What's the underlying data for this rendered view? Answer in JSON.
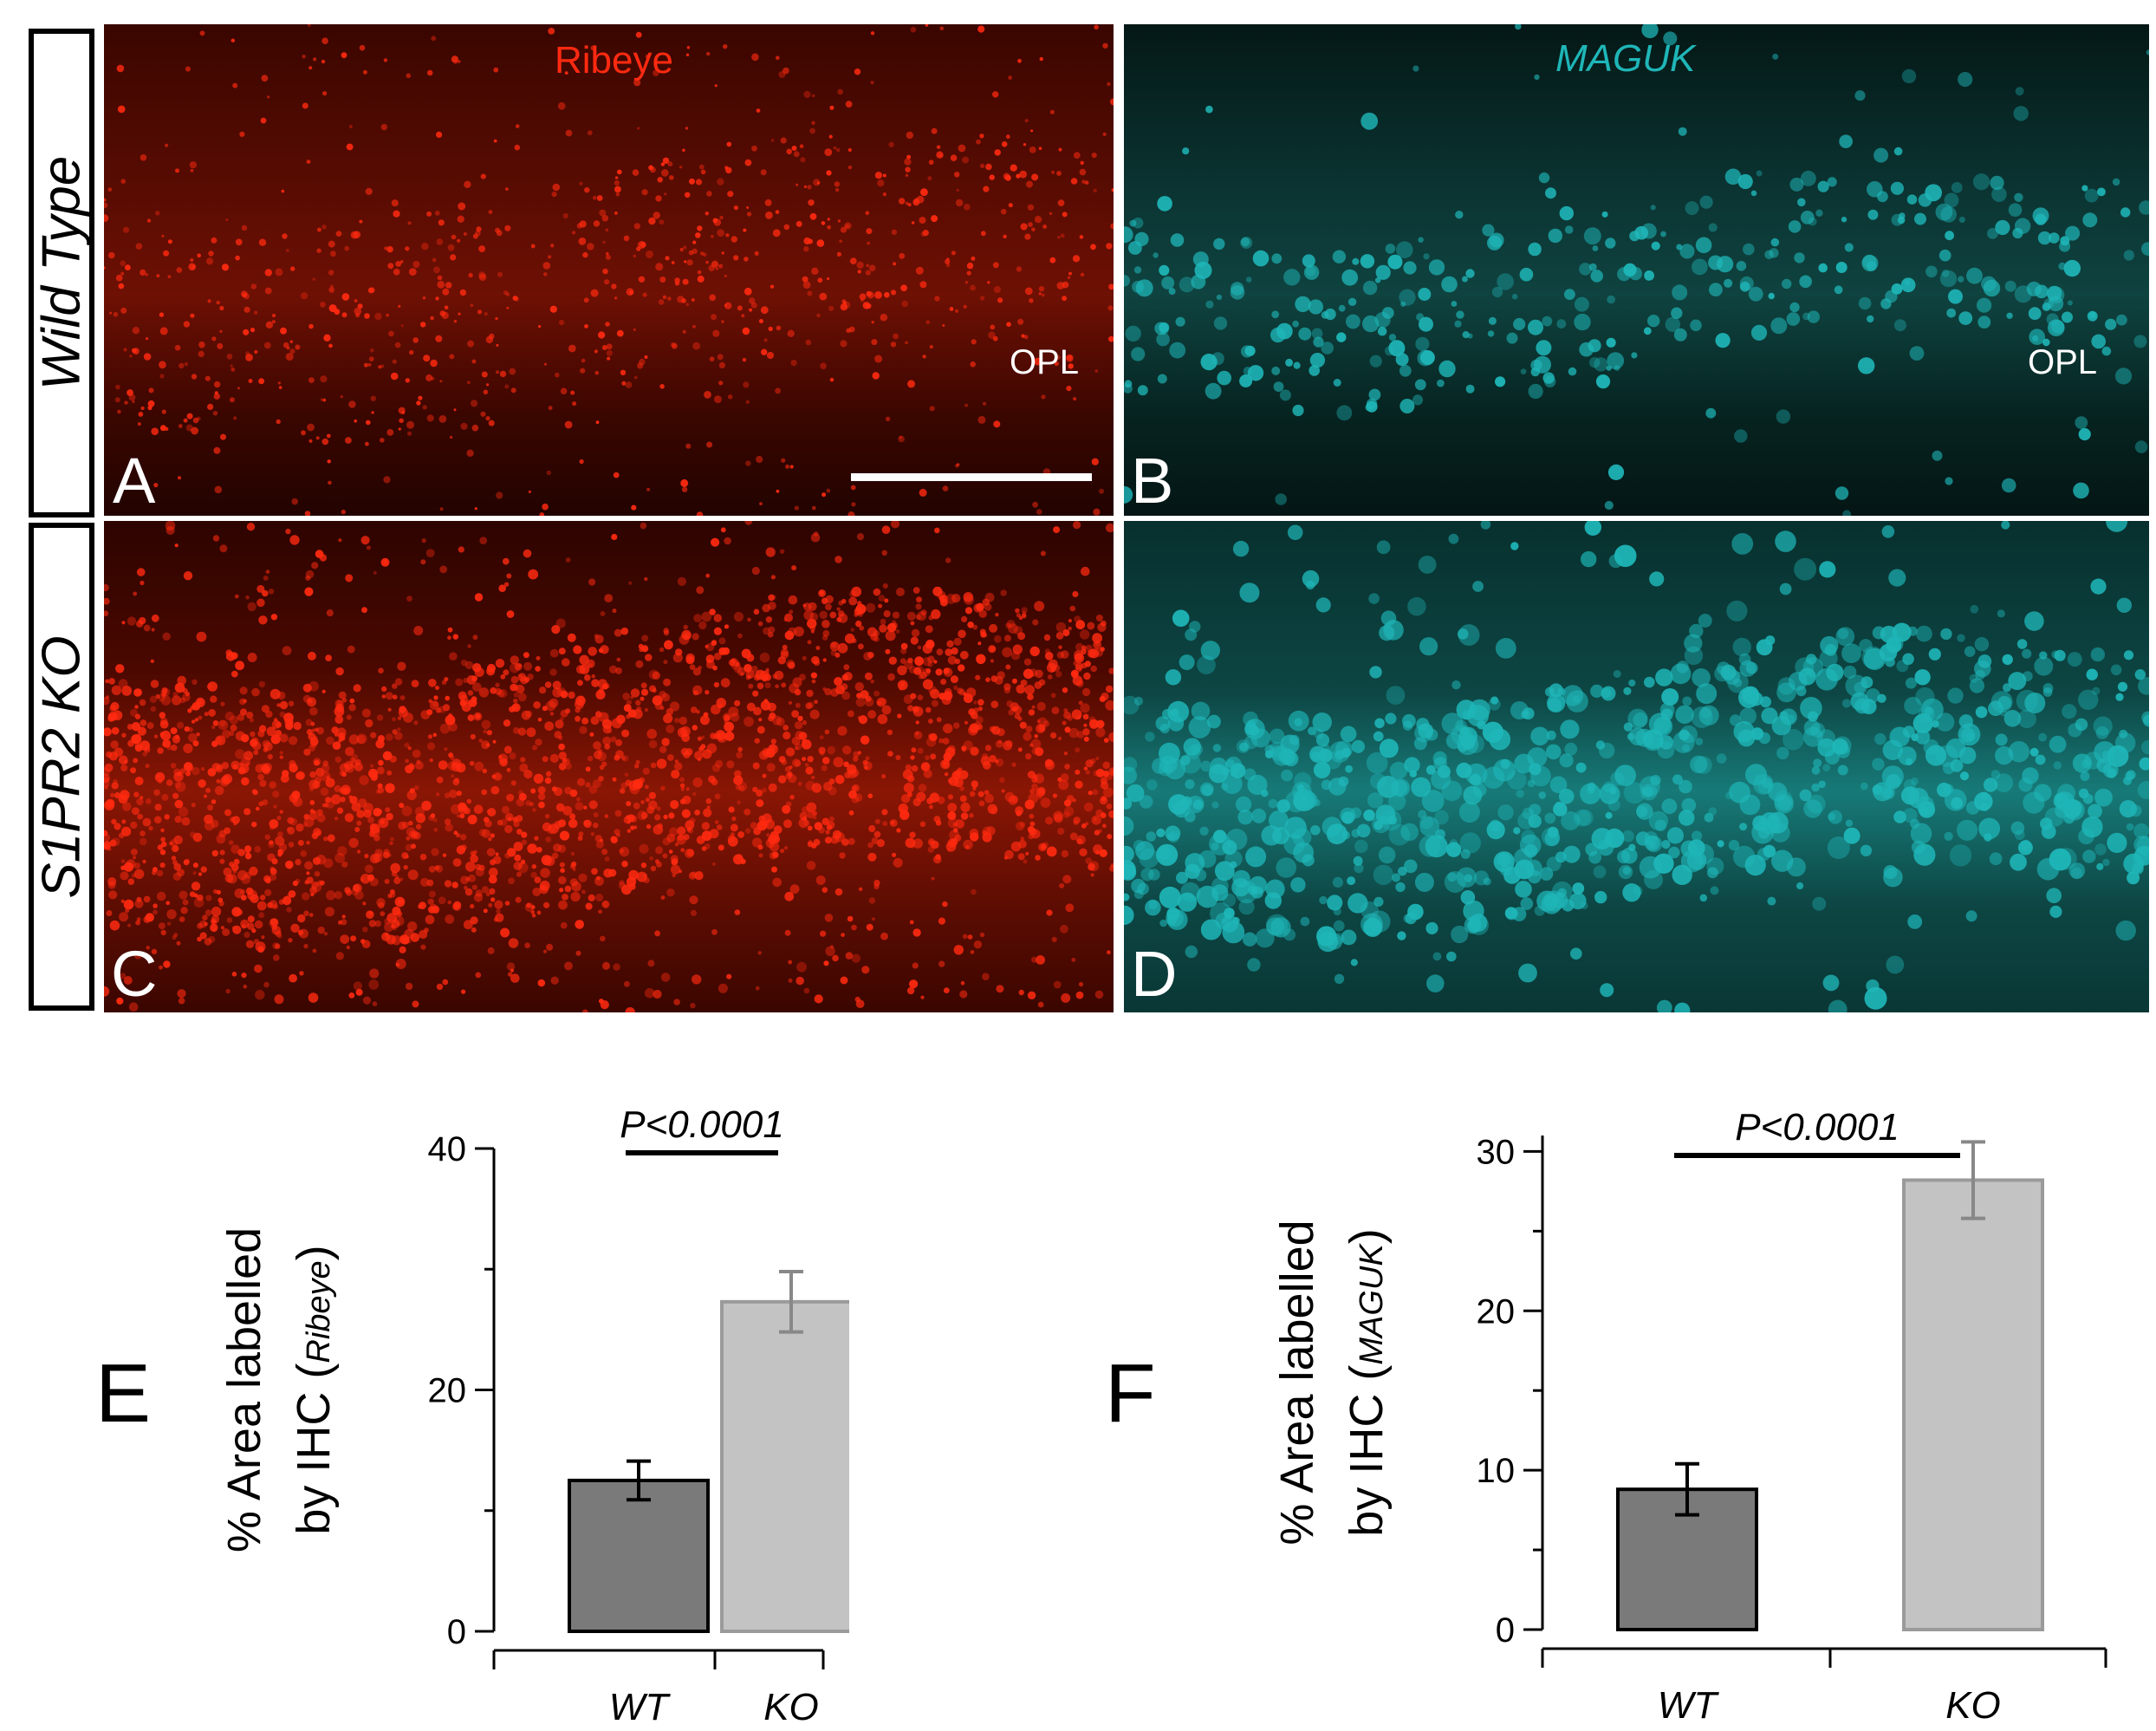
{
  "figure": {
    "rows": [
      {
        "label": "Wild Type"
      },
      {
        "label": "S1PR2 KO"
      }
    ],
    "panels": {
      "A": {
        "letter": "A",
        "channel": "Ribeye",
        "region": "OPL"
      },
      "B": {
        "letter": "B",
        "channel": "MAGUK",
        "region": "OPL"
      },
      "C": {
        "letter": "C"
      },
      "D": {
        "letter": "D"
      }
    },
    "colors": {
      "ribeye": "#ff2a10",
      "maguk": "#1fb6b8",
      "wt_bar": "#7a7a7a",
      "ko_bar": "#c3c3c3"
    }
  },
  "chart_data": [
    {
      "panel": "E",
      "type": "bar",
      "categories": [
        "WT",
        "KO"
      ],
      "values": [
        12.5,
        27.3
      ],
      "errors": [
        1.6,
        2.5
      ],
      "ylabel_line1": "% Area labelled",
      "ylabel_line2": "by IHC (",
      "ylabel_marker": "Ribeye",
      "ylabel_close": ")",
      "ylim": [
        0,
        40
      ],
      "yticks": [
        0,
        20,
        40
      ],
      "yticks_minor": [
        10,
        30
      ],
      "significance": "P<0.0001"
    },
    {
      "panel": "F",
      "type": "bar",
      "categories": [
        "WT",
        "KO"
      ],
      "values": [
        8.8,
        28.2
      ],
      "errors": [
        1.6,
        2.4
      ],
      "ylabel_line1": "% Area labelled",
      "ylabel_line2": "by IHC (",
      "ylabel_marker": "MAGUK",
      "ylabel_close": ")",
      "ylim": [
        0,
        31
      ],
      "yticks": [
        0,
        10,
        20,
        30
      ],
      "yticks_minor": [
        5,
        15,
        25
      ],
      "significance": "P<0.0001"
    }
  ]
}
